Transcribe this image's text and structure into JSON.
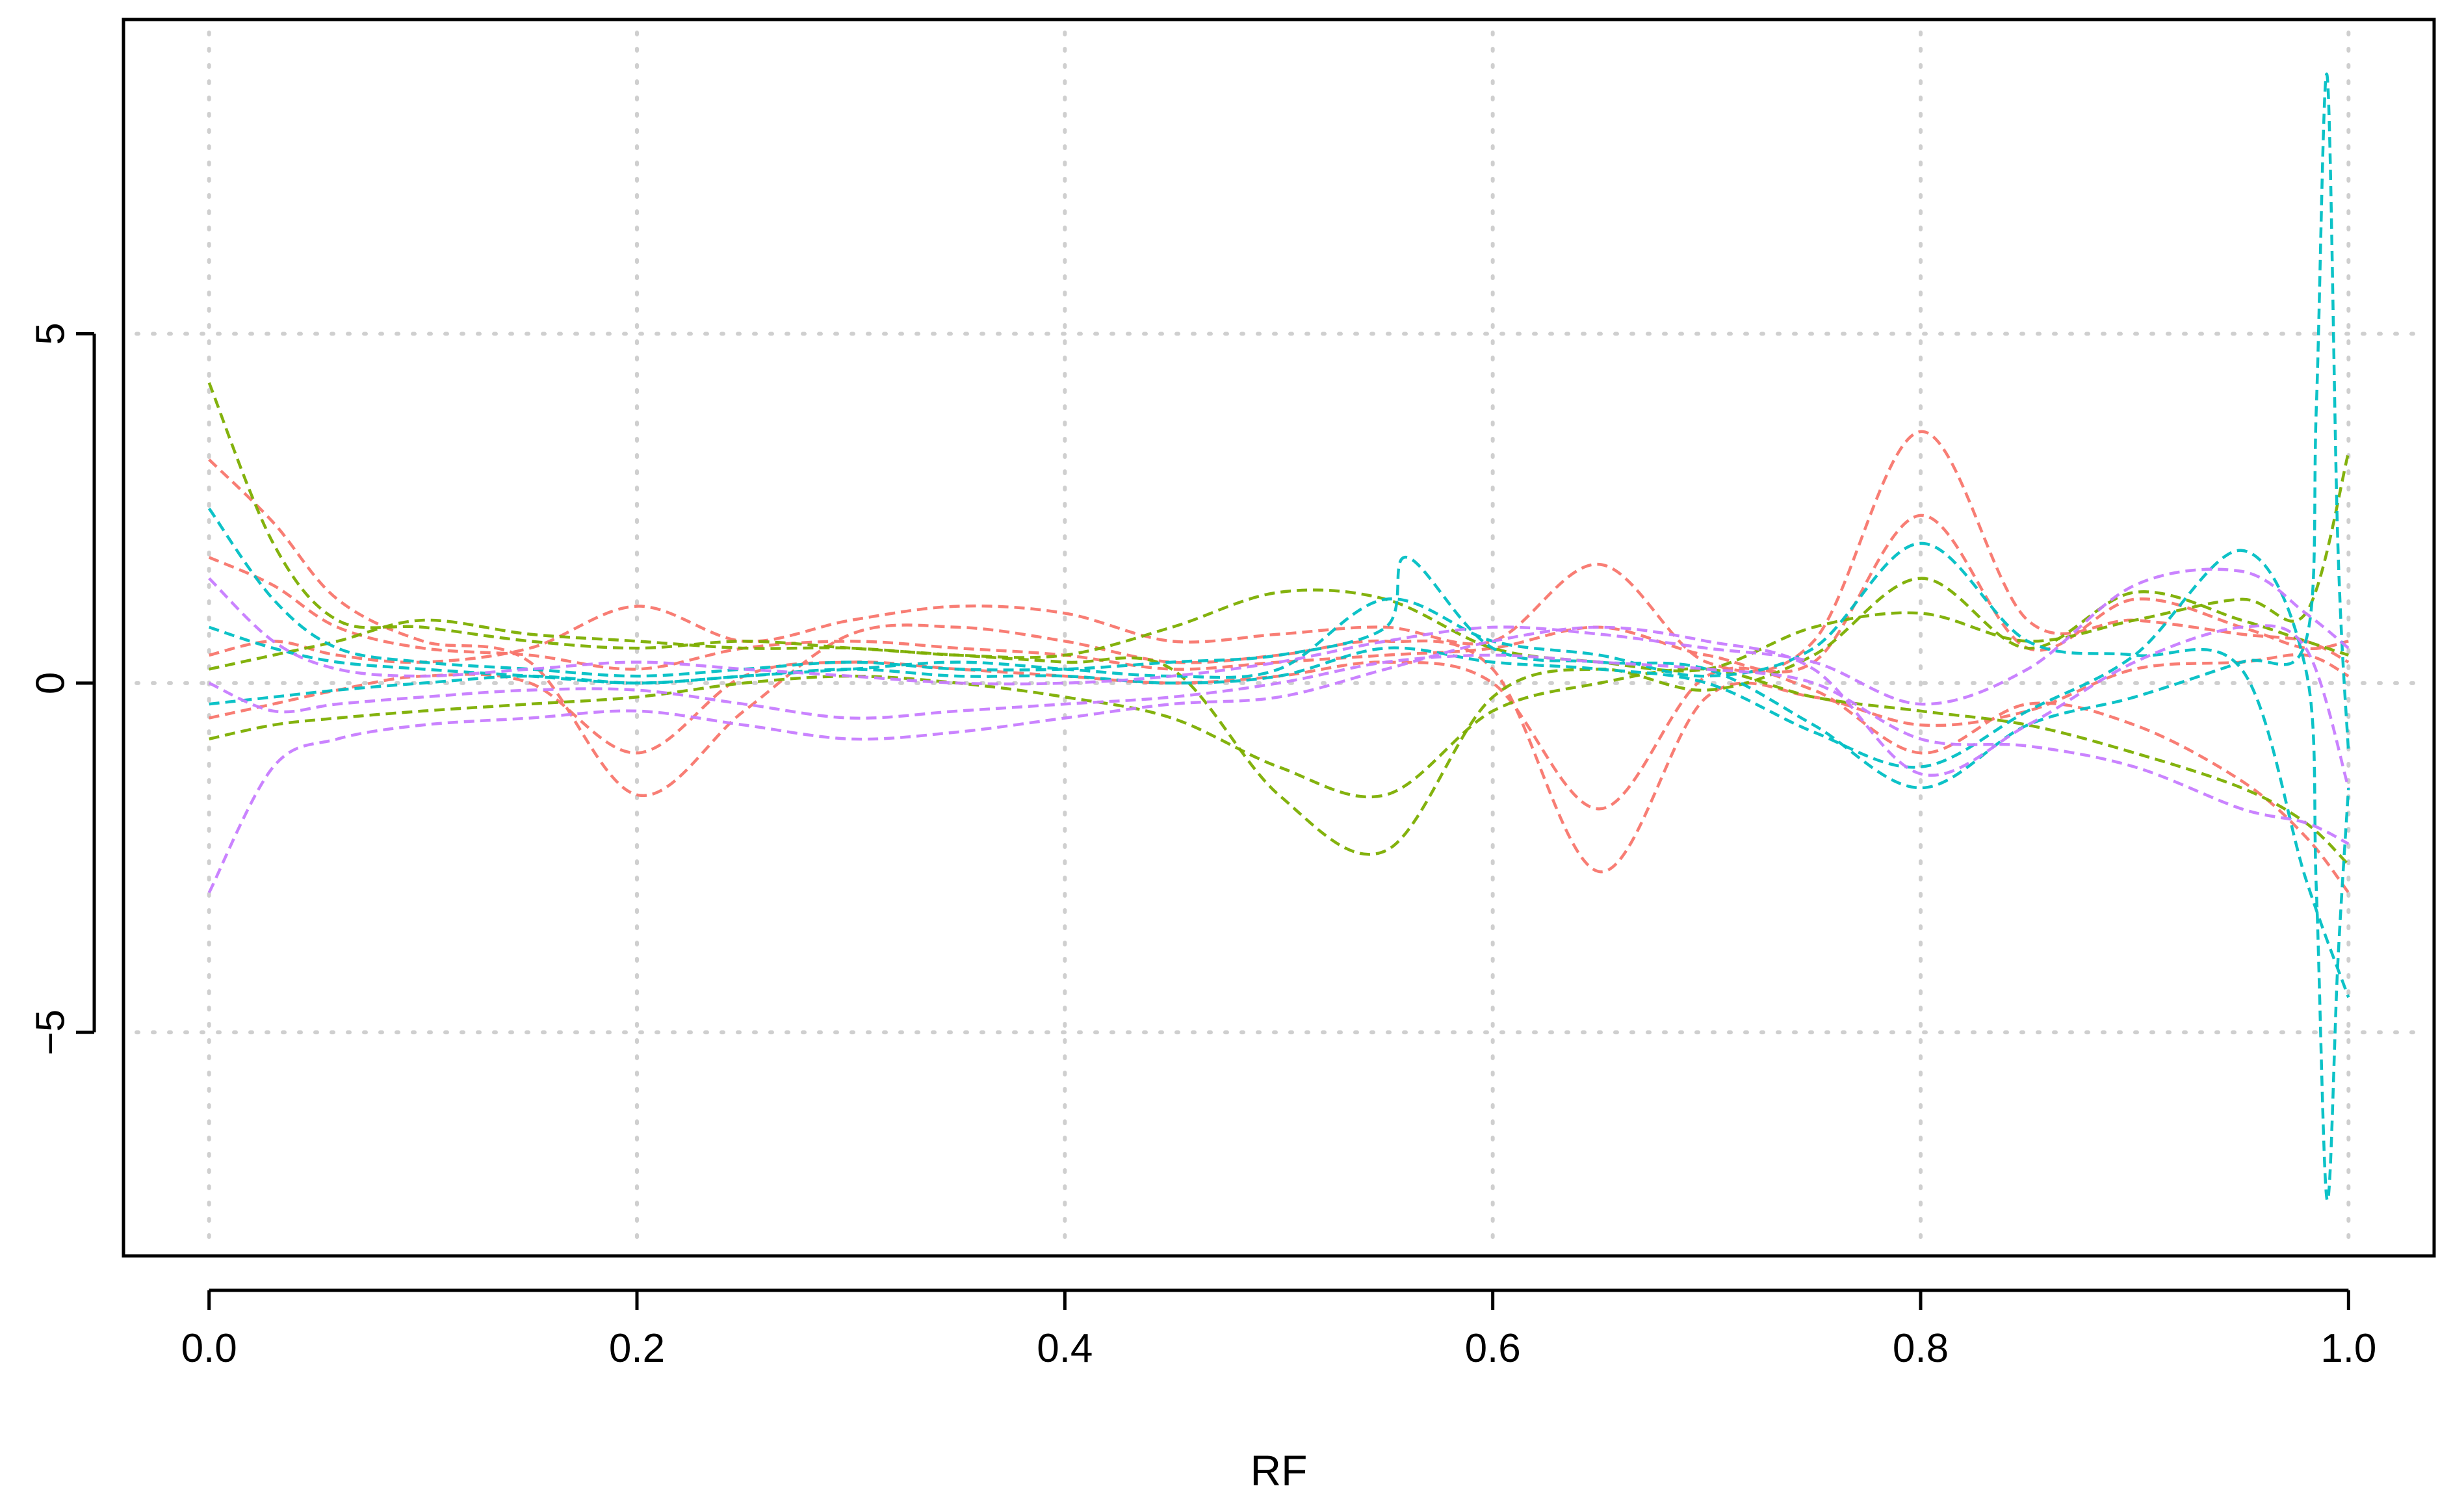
{
  "chart_data": {
    "type": "line",
    "title": "",
    "xlabel": "RF",
    "ylabel": "",
    "xlim": [
      -0.04,
      1.04
    ],
    "ylim": [
      -8.2,
      9.5
    ],
    "x_ticks": [
      0.0,
      0.2,
      0.4,
      0.6,
      0.8,
      1.0
    ],
    "x_tick_labels": [
      "0.0",
      "0.2",
      "0.4",
      "0.6",
      "0.8",
      "1.0"
    ],
    "y_ticks": [
      -5,
      0,
      5
    ],
    "y_tick_labels": [
      "-5",
      "0",
      "5"
    ],
    "grid": true,
    "line_style": "dashed",
    "colors": [
      "#F8766D",
      "#7CAE00",
      "#00BFC4",
      "#C77CFF"
    ],
    "series": [
      {
        "color": "#F8766D",
        "x": [
          0.0,
          0.03,
          0.06,
          0.1,
          0.15,
          0.2,
          0.25,
          0.3,
          0.35,
          0.4,
          0.45,
          0.5,
          0.55,
          0.6,
          0.65,
          0.7,
          0.75,
          0.8,
          0.85,
          0.9,
          0.95,
          0.98,
          1.0
        ],
        "values": [
          3.2,
          2.3,
          1.2,
          0.6,
          0.3,
          -1.6,
          -0.4,
          0.7,
          0.8,
          0.6,
          0.3,
          0.4,
          0.6,
          0.2,
          -2.7,
          -0.2,
          -0.2,
          -0.6,
          -0.4,
          0.2,
          0.3,
          0.4,
          0.1
        ]
      },
      {
        "color": "#F8766D",
        "x": [
          0.0,
          0.03,
          0.06,
          0.1,
          0.15,
          0.2,
          0.25,
          0.3,
          0.35,
          0.4,
          0.45,
          0.5,
          0.55,
          0.6,
          0.65,
          0.7,
          0.75,
          0.8,
          0.85,
          0.9,
          0.95,
          0.98,
          1.0
        ],
        "values": [
          0.4,
          0.6,
          0.4,
          0.3,
          0.5,
          1.1,
          0.6,
          0.9,
          1.1,
          1.0,
          0.6,
          0.7,
          0.8,
          0.6,
          1.7,
          0.3,
          0.6,
          3.6,
          0.9,
          0.9,
          0.7,
          0.6,
          0.3
        ]
      },
      {
        "color": "#F8766D",
        "x": [
          0.0,
          0.03,
          0.06,
          0.1,
          0.15,
          0.2,
          0.25,
          0.3,
          0.35,
          0.4,
          0.45,
          0.5,
          0.55,
          0.6,
          0.65,
          0.7,
          0.75,
          0.8,
          0.85,
          0.9,
          0.95,
          0.98,
          1.0
        ],
        "values": [
          -0.5,
          -0.3,
          -0.1,
          0.1,
          0.0,
          -1.0,
          0.1,
          0.3,
          0.2,
          0.1,
          0.0,
          0.1,
          0.3,
          0.0,
          -1.8,
          0.1,
          -0.1,
          -1.0,
          -0.3,
          -0.6,
          -1.4,
          -2.2,
          -3.0
        ]
      },
      {
        "color": "#F8766D",
        "x": [
          0.0,
          0.03,
          0.06,
          0.1,
          0.15,
          0.2,
          0.25,
          0.3,
          0.35,
          0.4,
          0.45,
          0.5,
          0.55,
          0.6,
          0.65,
          0.7,
          0.75,
          0.8,
          0.85,
          0.9,
          0.95,
          0.98,
          1.0
        ],
        "values": [
          1.8,
          1.4,
          0.8,
          0.5,
          0.4,
          0.2,
          0.5,
          0.6,
          0.5,
          0.4,
          0.2,
          0.3,
          0.4,
          0.5,
          0.8,
          0.4,
          0.3,
          2.4,
          0.5,
          1.2,
          0.8,
          0.5,
          0.6
        ]
      },
      {
        "color": "#7CAE00",
        "x": [
          0.0,
          0.03,
          0.06,
          0.1,
          0.15,
          0.2,
          0.25,
          0.3,
          0.35,
          0.4,
          0.45,
          0.5,
          0.55,
          0.6,
          0.65,
          0.7,
          0.75,
          0.8,
          0.85,
          0.9,
          0.95,
          0.98,
          1.0
        ],
        "values": [
          4.3,
          2.0,
          0.9,
          0.8,
          0.6,
          0.5,
          0.6,
          0.5,
          0.4,
          0.3,
          0.2,
          -1.6,
          -2.4,
          -0.2,
          0.2,
          -0.1,
          0.4,
          1.5,
          0.5,
          1.3,
          0.9,
          0.6,
          0.4
        ]
      },
      {
        "color": "#7CAE00",
        "x": [
          0.0,
          0.03,
          0.06,
          0.1,
          0.15,
          0.2,
          0.25,
          0.3,
          0.35,
          0.4,
          0.45,
          0.5,
          0.55,
          0.6,
          0.65,
          0.7,
          0.75,
          0.8,
          0.85,
          0.9,
          0.95,
          0.98,
          1.0
        ],
        "values": [
          0.2,
          0.4,
          0.6,
          0.9,
          0.7,
          0.6,
          0.5,
          0.5,
          0.4,
          0.4,
          0.8,
          1.3,
          1.2,
          0.5,
          0.3,
          0.2,
          0.8,
          1.0,
          0.6,
          0.9,
          1.2,
          1.0,
          3.3
        ]
      },
      {
        "color": "#7CAE00",
        "x": [
          0.0,
          0.03,
          0.06,
          0.1,
          0.15,
          0.2,
          0.25,
          0.3,
          0.35,
          0.4,
          0.45,
          0.5,
          0.55,
          0.6,
          0.65,
          0.7,
          0.75,
          0.8,
          0.85,
          0.9,
          0.95,
          0.98,
          1.0
        ],
        "values": [
          -0.8,
          -0.6,
          -0.5,
          -0.4,
          -0.3,
          -0.2,
          0.0,
          0.1,
          0.0,
          -0.2,
          -0.5,
          -1.2,
          -1.6,
          -0.4,
          0.0,
          0.2,
          -0.2,
          -0.4,
          -0.6,
          -1.0,
          -1.5,
          -2.0,
          -2.6
        ]
      },
      {
        "color": "#00BFC4",
        "x": [
          0.0,
          0.03,
          0.06,
          0.1,
          0.15,
          0.2,
          0.25,
          0.3,
          0.35,
          0.4,
          0.45,
          0.5,
          0.55,
          0.56,
          0.6,
          0.65,
          0.7,
          0.75,
          0.8,
          0.85,
          0.9,
          0.95,
          0.98,
          0.985,
          0.99,
          0.995,
          1.0
        ],
        "values": [
          2.5,
          1.2,
          0.5,
          0.3,
          0.2,
          0.1,
          0.2,
          0.3,
          0.2,
          0.2,
          0.3,
          0.4,
          0.8,
          1.8,
          0.5,
          0.3,
          0.2,
          -0.6,
          -1.5,
          -0.6,
          -0.2,
          0.3,
          0.6,
          4.0,
          8.7,
          2.0,
          -1.0
        ]
      },
      {
        "color": "#00BFC4",
        "x": [
          0.0,
          0.03,
          0.06,
          0.1,
          0.15,
          0.2,
          0.25,
          0.3,
          0.35,
          0.4,
          0.45,
          0.5,
          0.55,
          0.6,
          0.65,
          0.7,
          0.75,
          0.8,
          0.85,
          0.9,
          0.95,
          0.98,
          0.985,
          0.99,
          0.995,
          1.0
        ],
        "values": [
          -0.3,
          -0.2,
          -0.1,
          0.0,
          0.1,
          0.0,
          0.1,
          0.2,
          0.1,
          0.1,
          0.0,
          0.1,
          0.5,
          0.3,
          0.2,
          0.0,
          -0.7,
          -1.2,
          -0.4,
          0.4,
          1.9,
          0.2,
          -3.0,
          -7.4,
          -4.0,
          -1.5
        ]
      },
      {
        "color": "#00BFC4",
        "x": [
          0.0,
          0.03,
          0.06,
          0.1,
          0.15,
          0.2,
          0.25,
          0.3,
          0.35,
          0.4,
          0.45,
          0.5,
          0.55,
          0.6,
          0.65,
          0.7,
          0.75,
          0.8,
          0.85,
          0.9,
          0.95,
          0.98,
          1.0
        ],
        "values": [
          0.8,
          0.5,
          0.3,
          0.2,
          0.1,
          0.0,
          0.1,
          0.2,
          0.3,
          0.2,
          0.1,
          0.2,
          1.2,
          0.6,
          0.4,
          0.1,
          0.5,
          2.0,
          0.6,
          0.4,
          0.2,
          -2.8,
          -4.5
        ]
      },
      {
        "color": "#C77CFF",
        "x": [
          0.0,
          0.03,
          0.06,
          0.1,
          0.15,
          0.2,
          0.25,
          0.3,
          0.35,
          0.4,
          0.45,
          0.5,
          0.55,
          0.6,
          0.65,
          0.7,
          0.75,
          0.8,
          0.85,
          0.9,
          0.95,
          0.98,
          1.0
        ],
        "values": [
          -3.0,
          -1.2,
          -0.8,
          -0.6,
          -0.5,
          -0.4,
          -0.6,
          -0.8,
          -0.7,
          -0.5,
          -0.3,
          -0.2,
          0.2,
          0.6,
          0.8,
          0.6,
          0.2,
          -1.3,
          -0.6,
          0.3,
          0.8,
          0.5,
          -1.5
        ]
      },
      {
        "color": "#C77CFF",
        "x": [
          0.0,
          0.03,
          0.06,
          0.1,
          0.15,
          0.2,
          0.25,
          0.3,
          0.35,
          0.4,
          0.45,
          0.5,
          0.55,
          0.6,
          0.65,
          0.7,
          0.75,
          0.8,
          0.85,
          0.9,
          0.95,
          0.98,
          1.0
        ],
        "values": [
          1.5,
          0.6,
          0.2,
          0.1,
          0.2,
          0.3,
          0.2,
          0.1,
          0.0,
          0.0,
          0.1,
          0.3,
          0.6,
          0.8,
          0.7,
          0.5,
          0.3,
          -0.3,
          0.2,
          1.4,
          1.6,
          1.0,
          0.5
        ]
      },
      {
        "color": "#C77CFF",
        "x": [
          0.0,
          0.03,
          0.06,
          0.1,
          0.15,
          0.2,
          0.25,
          0.3,
          0.35,
          0.4,
          0.45,
          0.5,
          0.55,
          0.6,
          0.65,
          0.7,
          0.75,
          0.8,
          0.85,
          0.9,
          0.95,
          0.98,
          1.0
        ],
        "values": [
          0.0,
          -0.4,
          -0.3,
          -0.2,
          -0.1,
          -0.1,
          -0.3,
          -0.5,
          -0.4,
          -0.3,
          -0.2,
          0.0,
          0.3,
          0.4,
          0.3,
          0.2,
          0.0,
          -0.8,
          -0.9,
          -1.2,
          -1.8,
          -2.0,
          -2.3
        ]
      }
    ]
  }
}
